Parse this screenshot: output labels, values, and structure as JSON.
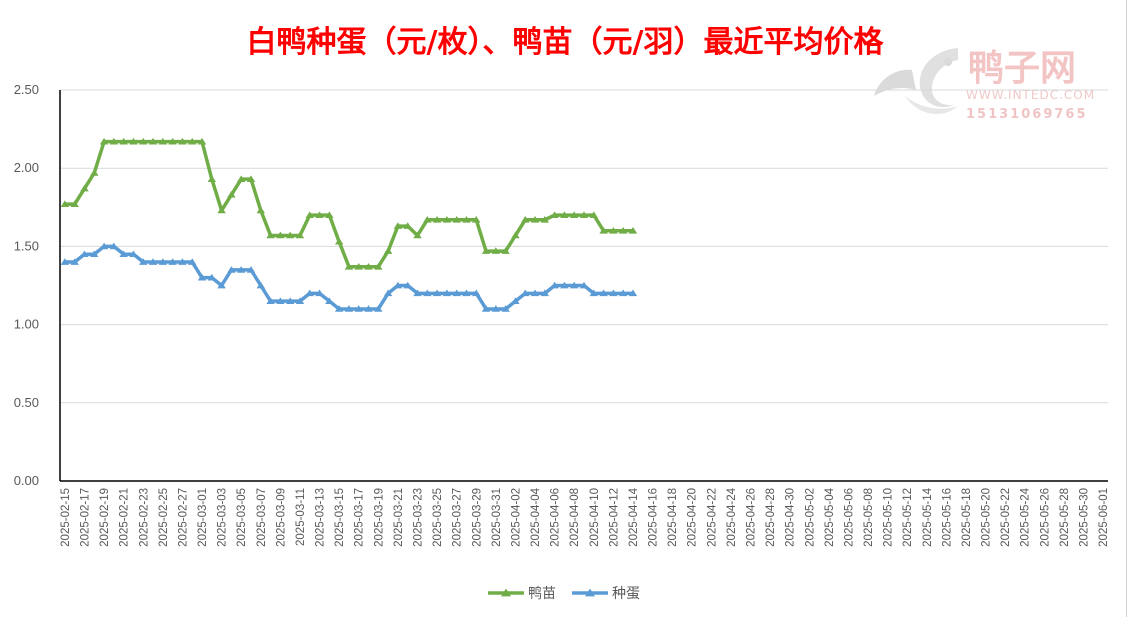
{
  "chart_data": {
    "type": "line",
    "title": "白鸭种蛋（元/枚）、鸭苗（元/羽）最近平均价格",
    "xlabel": "",
    "ylabel": "",
    "ylim": [
      0,
      2.5
    ],
    "y_ticks": [
      "0.00",
      "0.50",
      "1.00",
      "1.50",
      "2.00",
      "2.50"
    ],
    "grid": "horizontal",
    "legend_position": "bottom",
    "x_tick_labels": [
      "2025-02-15",
      "2025-02-17",
      "2025-02-19",
      "2025-02-21",
      "2025-02-23",
      "2025-02-25",
      "2025-02-27",
      "2025-03-01",
      "2025-03-03",
      "2025-03-05",
      "2025-03-07",
      "2025-03-09",
      "2025-03-11",
      "2025-03-13",
      "2025-03-15",
      "2025-03-17",
      "2025-03-19",
      "2025-03-21",
      "2025-03-23",
      "2025-03-25",
      "2025-03-27",
      "2025-03-29",
      "2025-03-31",
      "2025-04-02",
      "2025-04-04",
      "2025-04-06",
      "2025-04-08",
      "2025-04-10",
      "2025-04-12",
      "2025-04-14",
      "2025-04-16",
      "2025-04-18",
      "2025-04-20",
      "2025-04-22",
      "2025-04-24",
      "2025-04-26",
      "2025-04-28",
      "2025-04-30",
      "2025-05-02",
      "2025-05-04",
      "2025-05-06",
      "2025-05-08",
      "2025-05-10",
      "2025-05-12",
      "2025-05-14",
      "2025-05-16",
      "2025-05-18",
      "2025-05-20",
      "2025-05-22",
      "2025-05-24",
      "2025-05-26",
      "2025-05-28",
      "2025-05-30",
      "2025-06-01"
    ],
    "x": [
      "2025-02-15",
      "2025-02-16",
      "2025-02-17",
      "2025-02-18",
      "2025-02-19",
      "2025-02-20",
      "2025-02-21",
      "2025-02-22",
      "2025-02-23",
      "2025-02-24",
      "2025-02-25",
      "2025-02-26",
      "2025-02-27",
      "2025-02-28",
      "2025-03-01",
      "2025-03-02",
      "2025-03-03",
      "2025-03-04",
      "2025-03-05",
      "2025-03-06",
      "2025-03-07",
      "2025-03-08",
      "2025-03-09",
      "2025-03-10",
      "2025-03-11",
      "2025-03-12",
      "2025-03-13",
      "2025-03-14",
      "2025-03-15",
      "2025-03-16",
      "2025-03-17",
      "2025-03-18",
      "2025-03-19",
      "2025-03-20",
      "2025-03-21",
      "2025-03-22",
      "2025-03-23",
      "2025-03-24",
      "2025-03-25",
      "2025-03-26",
      "2025-03-27",
      "2025-03-28",
      "2025-03-29",
      "2025-03-30",
      "2025-03-31",
      "2025-04-01",
      "2025-04-02",
      "2025-04-03",
      "2025-04-04",
      "2025-04-05",
      "2025-04-06",
      "2025-04-07",
      "2025-04-08",
      "2025-04-09",
      "2025-04-10",
      "2025-04-11",
      "2025-04-12",
      "2025-04-13",
      "2025-04-14"
    ],
    "series": [
      {
        "name": "鸭苗",
        "color": "#70ad47",
        "values": [
          1.77,
          1.77,
          1.87,
          1.97,
          2.17,
          2.17,
          2.17,
          2.17,
          2.17,
          2.17,
          2.17,
          2.17,
          2.17,
          2.17,
          2.17,
          1.93,
          1.73,
          1.83,
          1.93,
          1.93,
          1.73,
          1.57,
          1.57,
          1.57,
          1.57,
          1.7,
          1.7,
          1.7,
          1.53,
          1.37,
          1.37,
          1.37,
          1.37,
          1.47,
          1.63,
          1.63,
          1.57,
          1.67,
          1.67,
          1.67,
          1.67,
          1.67,
          1.67,
          1.47,
          1.47,
          1.47,
          1.57,
          1.67,
          1.67,
          1.67,
          1.7,
          1.7,
          1.7,
          1.7,
          1.7,
          1.6,
          1.6,
          1.6,
          1.6
        ]
      },
      {
        "name": "种蛋",
        "color": "#5b9bd5",
        "values": [
          1.4,
          1.4,
          1.45,
          1.45,
          1.5,
          1.5,
          1.45,
          1.45,
          1.4,
          1.4,
          1.4,
          1.4,
          1.4,
          1.4,
          1.3,
          1.3,
          1.25,
          1.35,
          1.35,
          1.35,
          1.25,
          1.15,
          1.15,
          1.15,
          1.15,
          1.2,
          1.2,
          1.15,
          1.1,
          1.1,
          1.1,
          1.1,
          1.1,
          1.2,
          1.25,
          1.25,
          1.2,
          1.2,
          1.2,
          1.2,
          1.2,
          1.2,
          1.2,
          1.1,
          1.1,
          1.1,
          1.15,
          1.2,
          1.2,
          1.2,
          1.25,
          1.25,
          1.25,
          1.25,
          1.2,
          1.2,
          1.2,
          1.2,
          1.2
        ]
      }
    ]
  },
  "watermark": {
    "brand": "鸭子网",
    "url": "WWW.INTEDC.COM",
    "phone": "15131069765",
    "color": "#f0b8b8"
  }
}
